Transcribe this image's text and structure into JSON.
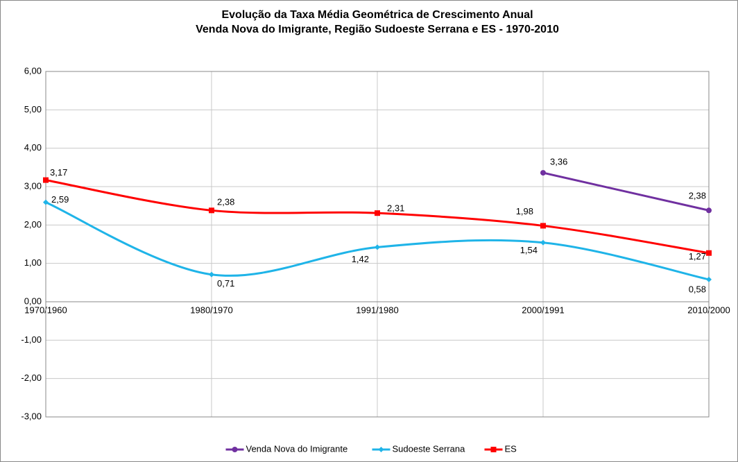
{
  "chart_data": {
    "type": "line",
    "title": [
      "Evolução da Taxa Média Geométrica de Crescimento Anual",
      "Venda Nova do Imigrante, Região Sudoeste Serrana e ES - 1970-2010"
    ],
    "categories": [
      "1970/1960",
      "1980/1970",
      "1991/1980",
      "2000/1991",
      "2010/2000"
    ],
    "series": [
      {
        "name": "Venda Nova do Imigrante",
        "color": "#7030a0",
        "marker": "circle",
        "values": [
          null,
          null,
          null,
          3.36,
          2.38
        ],
        "value_labels": [
          null,
          null,
          null,
          "3,36",
          "2,38"
        ]
      },
      {
        "name": "Sudoeste Serrana",
        "color": "#1fb4e8",
        "marker": "diamond",
        "values": [
          2.59,
          0.71,
          1.42,
          1.54,
          0.58
        ],
        "value_labels": [
          "2,59",
          "0,71",
          "1,42",
          "1,54",
          "0,58"
        ]
      },
      {
        "name": "ES",
        "color": "#ff0000",
        "marker": "square",
        "values": [
          3.17,
          2.38,
          2.31,
          1.98,
          1.27
        ],
        "value_labels": [
          "3,17",
          "2,38",
          "2,31",
          "1,98",
          "1,27"
        ]
      }
    ],
    "ylim": [
      -3,
      6
    ],
    "yticks": [
      {
        "value": -3,
        "label": "-3,00"
      },
      {
        "value": -2,
        "label": "-2,00"
      },
      {
        "value": -1,
        "label": "-1,00"
      },
      {
        "value": 0,
        "label": "0,00"
      },
      {
        "value": 1,
        "label": "1,00"
      },
      {
        "value": 2,
        "label": "2,00"
      },
      {
        "value": 3,
        "label": "3,00"
      },
      {
        "value": 4,
        "label": "4,00"
      },
      {
        "value": 5,
        "label": "5,00"
      },
      {
        "value": 6,
        "label": "6,00"
      }
    ],
    "grid": true,
    "smooth": true,
    "legend": "bottom"
  }
}
